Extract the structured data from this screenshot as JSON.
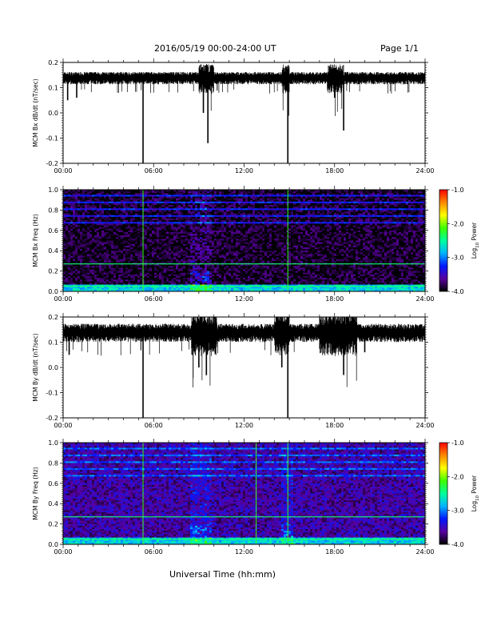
{
  "header": {
    "title": "2016/05/19  00:00-24:00 UT",
    "page": "Page 1/1"
  },
  "colorbar": {
    "label": "Log",
    "label_subscript": "10",
    "label_suffix": " Power",
    "range": [
      -4.0,
      -1.0
    ],
    "tick_labels": [
      "-1.0",
      "-2.0",
      "-3.0",
      "-4.0"
    ],
    "colors": [
      "#000000",
      "#5a00a0",
      "#0018ff",
      "#00b4ff",
      "#00ff9c",
      "#40ff00",
      "#ffff00",
      "#ff8800",
      "#ff0000"
    ]
  },
  "x_axis_title": "Universal Time (hh:mm)",
  "chart_data": [
    {
      "type": "line",
      "ylabel": "MCM Bx dB/dt (nT/sec)",
      "xlim": [
        0,
        24
      ],
      "ylim": [
        -0.2,
        0.2
      ],
      "x_tick_labels": [
        "00:00",
        "06:00",
        "12:00",
        "18:00",
        "24:00"
      ],
      "y_tick_labels": [
        "0.2",
        "0.1",
        "0.0",
        "-0.1",
        "-0.2"
      ],
      "baseline": 0.14,
      "noise": 0.015,
      "disturbed_intervals": [
        [
          9.0,
          10.0
        ],
        [
          14.5,
          15.0
        ],
        [
          17.5,
          18.6
        ]
      ],
      "spikes": [
        {
          "t": 0.3,
          "min": 0.05
        },
        {
          "t": 0.9,
          "min": 0.06
        },
        {
          "t": 5.3,
          "min": -0.2
        },
        {
          "t": 9.3,
          "min": 0.0
        },
        {
          "t": 9.6,
          "min": -0.12
        },
        {
          "t": 14.9,
          "min": -0.2
        },
        {
          "t": 18.6,
          "min": -0.07
        },
        {
          "t": 18.0,
          "min": 0.06
        }
      ]
    },
    {
      "type": "heatmap",
      "ylabel": "MCM Bx Freq (Hz)",
      "xlim": [
        0,
        24
      ],
      "ylim": [
        0.0,
        1.0
      ],
      "x_tick_labels": [
        "00:00",
        "06:00",
        "12:00",
        "18:00",
        "24:00"
      ],
      "y_tick_labels": [
        "1.0",
        "0.8",
        "0.6",
        "0.4",
        "0.2",
        "0.0"
      ],
      "value_range": [
        -4.0,
        -1.0
      ],
      "background_level": -3.9,
      "harmonic_spacing_hz": 0.0667,
      "harmonic_level": -3.3,
      "bright_lines_hz": [
        0.27,
        0.05
      ],
      "vertical_lines_hours": [
        5.3,
        14.9
      ],
      "active_intervals": [
        [
          8.5,
          9.8
        ]
      ]
    },
    {
      "type": "line",
      "ylabel": "MCM By dB/dt (nT/sec)",
      "xlim": [
        0,
        24
      ],
      "ylim": [
        -0.2,
        0.2
      ],
      "x_tick_labels": [
        "00:00",
        "06:00",
        "12:00",
        "18:00",
        "24:00"
      ],
      "y_tick_labels": [
        "0.2",
        "0.1",
        "0.0",
        "-0.1",
        "-0.2"
      ],
      "baseline": 0.14,
      "noise": 0.022,
      "disturbed_intervals": [
        [
          8.5,
          10.2
        ],
        [
          14.0,
          15.0
        ],
        [
          17.0,
          19.5
        ]
      ],
      "spikes": [
        {
          "t": 0.4,
          "min": 0.05
        },
        {
          "t": 5.3,
          "min": -0.2
        },
        {
          "t": 9.0,
          "min": 0.0
        },
        {
          "t": 9.5,
          "min": -0.03
        },
        {
          "t": 14.9,
          "min": -0.2
        },
        {
          "t": 14.5,
          "min": 0.0
        },
        {
          "t": 18.6,
          "min": -0.03
        },
        {
          "t": 20.0,
          "min": 0.06
        }
      ]
    },
    {
      "type": "heatmap",
      "ylabel": "MCM By Freq (Hz)",
      "xlim": [
        0,
        24
      ],
      "ylim": [
        0.0,
        1.0
      ],
      "x_tick_labels": [
        "00:00",
        "06:00",
        "12:00",
        "18:00",
        "24:00"
      ],
      "y_tick_labels": [
        "1.0",
        "0.8",
        "0.6",
        "0.4",
        "0.2",
        "0.0"
      ],
      "value_range": [
        -4.0,
        -1.0
      ],
      "background_level": -3.6,
      "harmonic_spacing_hz": 0.0667,
      "harmonic_level": -3.1,
      "bright_lines_hz": [
        0.27,
        0.05
      ],
      "vertical_lines_hours": [
        5.3,
        12.8,
        14.9
      ],
      "active_intervals": [
        [
          8.5,
          9.8
        ],
        [
          14.5,
          15.2
        ]
      ]
    }
  ]
}
